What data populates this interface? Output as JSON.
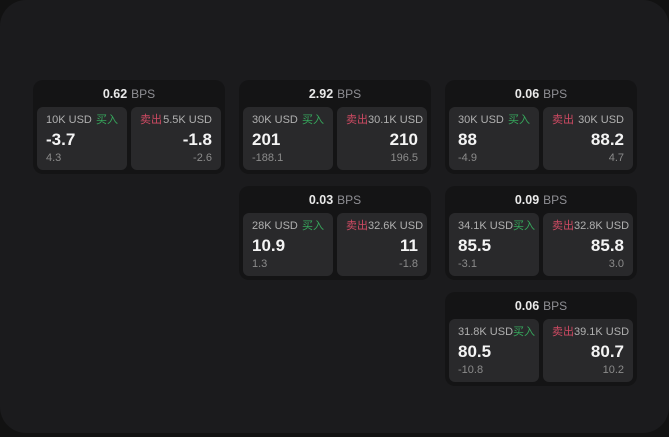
{
  "colors": {
    "buy_green": "#36a75c",
    "sell_red": "#cf4a63",
    "window_bg": "#1b1b1d",
    "card_bg": "#141415",
    "panel_bg": "#29292b"
  },
  "labels": {
    "bps": "BPS",
    "buy": "买入",
    "sell": "卖出"
  },
  "cards": [
    {
      "bps": "0.62",
      "buy": {
        "amount": "10K USD",
        "value": "-3.7",
        "sub": "4.3"
      },
      "sell": {
        "amount": "5.5K USD",
        "value": "-1.8",
        "sub": "-2.6"
      }
    },
    {
      "bps": "2.92",
      "buy": {
        "amount": "30K USD",
        "value": "201",
        "sub": "-188.1"
      },
      "sell": {
        "amount": "30.1K USD",
        "value": "210",
        "sub": "196.5"
      }
    },
    {
      "bps": "0.06",
      "buy": {
        "amount": "30K USD",
        "value": "88",
        "sub": "-4.9"
      },
      "sell": {
        "amount": "30K USD",
        "value": "88.2",
        "sub": "4.7"
      }
    },
    {
      "bps": "0.03",
      "buy": {
        "amount": "28K USD",
        "value": "10.9",
        "sub": "1.3"
      },
      "sell": {
        "amount": "32.6K USD",
        "value": "11",
        "sub": "-1.8"
      }
    },
    {
      "bps": "0.09",
      "buy": {
        "amount": "34.1K USD",
        "value": "85.5",
        "sub": "-3.1"
      },
      "sell": {
        "amount": "32.8K USD",
        "value": "85.8",
        "sub": "3.0"
      }
    },
    {
      "bps": "0.06",
      "buy": {
        "amount": "31.8K USD",
        "value": "80.5",
        "sub": "-10.8"
      },
      "sell": {
        "amount": "39.1K USD",
        "value": "80.7",
        "sub": "10.2"
      }
    }
  ]
}
